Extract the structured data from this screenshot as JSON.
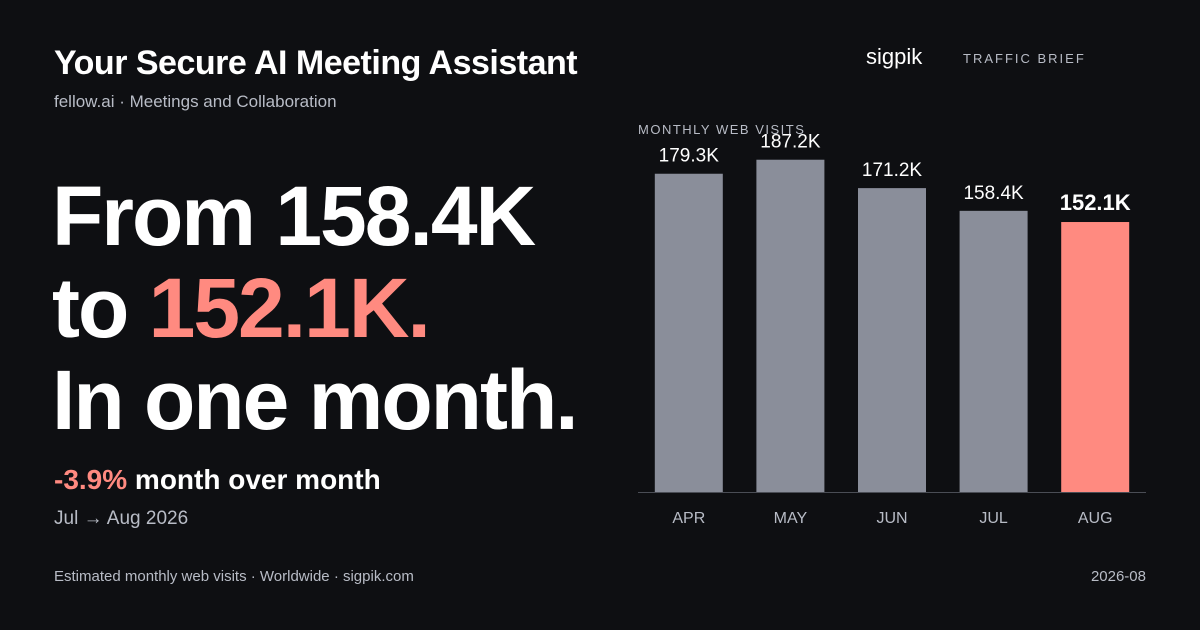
{
  "header": {
    "title": "Your Secure AI Meeting Assistant",
    "subtitle": "fellow.ai · Meetings and Collaboration"
  },
  "brand": {
    "name": "sigpik",
    "section": "TRAFFIC BRIEF"
  },
  "headline": {
    "line1": "From 158.4K",
    "line2_prefix": "to ",
    "line2_value": "152.1K.",
    "line3": "In one month."
  },
  "change": {
    "value": "-3.9%",
    "label": " month over month",
    "period": "Jul → Aug 2026"
  },
  "footer": {
    "source": "Estimated monthly web visits · Worldwide · sigpik.com",
    "date": "2026-08"
  },
  "colors": {
    "background": "#0e0f12",
    "bar": "#8a8e9a",
    "highlight": "#ff8a80",
    "muted": "#b8bcc6",
    "axis": "#4a4d55"
  },
  "chart_data": {
    "type": "bar",
    "title": "MONTHLY WEB VISITS",
    "categories": [
      "APR",
      "MAY",
      "JUN",
      "JUL",
      "AUG"
    ],
    "values": [
      179.3,
      187.2,
      171.2,
      158.4,
      152.1
    ],
    "value_labels": [
      "179.3K",
      "187.2K",
      "171.2K",
      "158.4K",
      "152.1K"
    ],
    "unit": "K",
    "highlight_index": 4,
    "ylim": [
      0,
      200
    ],
    "grid": false,
    "legend": "none"
  }
}
